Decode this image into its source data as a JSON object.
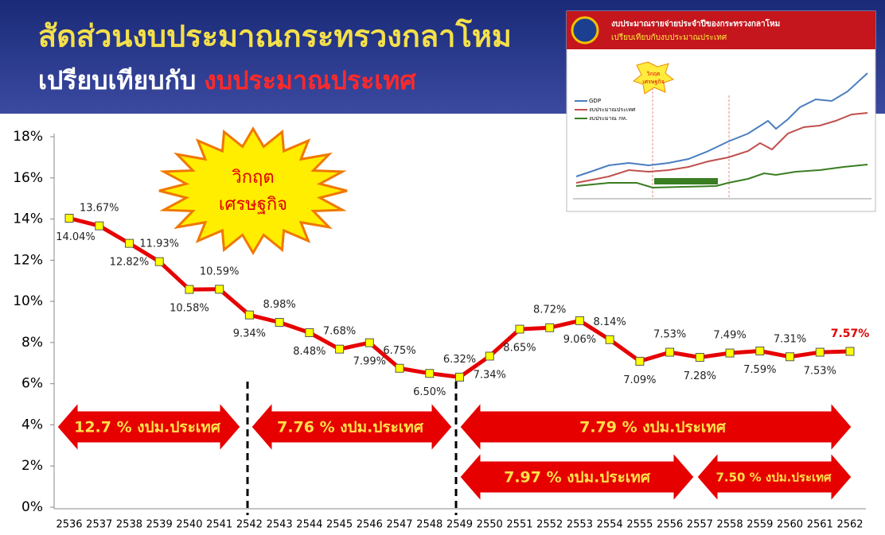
{
  "header": {
    "title_line1": "สัดส่วนงบประมาณกระทรวงกลาโหม",
    "title_line2_a": "เปรียบเทียบกับ",
    "title_line2_b": "งบประมาณประเทศ"
  },
  "inset": {
    "title_line1": "งบประมาณรายจ่ายประจำปีของกระทรวงกลาโหม",
    "title_line2": "เปรียบเทียบกับงบประมาณประเทศ",
    "legend": [
      "GDP",
      "งบประมาณประเทศ",
      "งบประมาณ กห."
    ],
    "burst": [
      "วิกฤต",
      "เศรษฐกิจ"
    ]
  },
  "chart_data": {
    "type": "line",
    "categories": [
      "2536",
      "2537",
      "2538",
      "2539",
      "2540",
      "2541",
      "2542",
      "2543",
      "2544",
      "2545",
      "2546",
      "2547",
      "2548",
      "2549",
      "2550",
      "2551",
      "2552",
      "2553",
      "2554",
      "2555",
      "2556",
      "2557",
      "2558",
      "2559",
      "2560",
      "2561",
      "2562"
    ],
    "series": [
      {
        "color": "#e60000",
        "values": [
          14.04,
          13.67,
          12.82,
          11.93,
          10.58,
          10.59,
          9.34,
          8.98,
          8.48,
          7.68,
          7.99,
          6.75,
          6.5,
          6.32,
          7.34,
          8.65,
          8.72,
          9.06,
          8.14,
          7.09,
          7.53,
          7.28,
          7.49,
          7.59,
          7.31,
          7.53,
          7.57
        ],
        "value_labels": [
          "14.04%",
          "13.67%",
          "12.82%",
          "11.93%",
          "10.58%",
          "10.59%",
          "9.34%",
          "8.98%",
          "8.48%",
          "7.68%",
          "7.99%",
          "6.75%",
          "6.50%",
          "6.32%",
          "7.34%",
          "8.65%",
          "8.72%",
          "9.06%",
          "8.14%",
          "7.09%",
          "7.53%",
          "7.28%",
          "7.49%",
          "7.59%",
          "7.31%",
          "7.53%",
          "7.57%"
        ]
      }
    ],
    "ylim": [
      0,
      18
    ],
    "yticks": [
      {
        "value": 0,
        "label": "0%"
      },
      {
        "value": 2,
        "label": "2%"
      },
      {
        "value": 4,
        "label": "4%"
      },
      {
        "value": 6,
        "label": "6%"
      },
      {
        "value": 8,
        "label": "8%"
      },
      {
        "value": 10,
        "label": "10%"
      },
      {
        "value": 12,
        "label": "12%"
      },
      {
        "value": 14,
        "label": "14%"
      },
      {
        "value": 16,
        "label": "16%"
      },
      {
        "value": 18,
        "label": "18%"
      }
    ],
    "annotations": {
      "burst": [
        "วิกฤต",
        "เศรษฐกิจ"
      ],
      "arrows": [
        "12.7 % งปม.ประเทศ",
        "7.76 % งปม.ประเทศ",
        "7.79 % งปม.ประเทศ",
        "7.97 % งปม.ประเทศ",
        "7.50 % งปม.ประเทศ"
      ]
    }
  }
}
